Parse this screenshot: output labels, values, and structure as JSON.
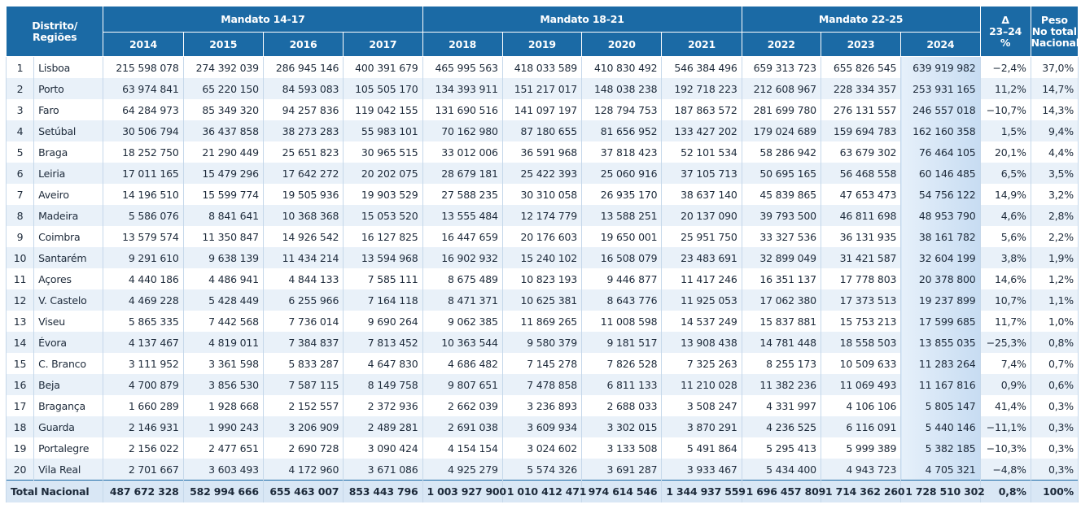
{
  "table": {
    "header": {
      "region_label": "Distrito/ Regiões",
      "groups": [
        {
          "label": "Mandato 14-17",
          "years": [
            "2014",
            "2015",
            "2016",
            "2017"
          ]
        },
        {
          "label": "Mandato 18-21",
          "years": [
            "2018",
            "2019",
            "2020",
            "2021"
          ]
        },
        {
          "label": "Mandato 22-25",
          "years": [
            "2022",
            "2023",
            "2024"
          ]
        }
      ],
      "change_label": [
        "Δ",
        "23–24",
        "%"
      ],
      "weight_label": [
        "Peso",
        "No total",
        "Nacional"
      ]
    },
    "rows": [
      {
        "rank": "1",
        "name": "Lisboa",
        "values": [
          "215 598 078",
          "274 392 039",
          "286 945 146",
          "400 391 679",
          "465 995 563",
          "418 033 589",
          "410 830 492",
          "546 384 496",
          "659 313 723",
          "655 826 545",
          "639 919 982"
        ],
        "change": "−2,4%",
        "weight": "37,0%"
      },
      {
        "rank": "2",
        "name": "Porto",
        "values": [
          "63 974 841",
          "65 220 150",
          "84 593 083",
          "105 505 170",
          "134 393 911",
          "151 217 017",
          "148 038 238",
          "192 718 223",
          "212 608 967",
          "228 334 357",
          "253 931 165"
        ],
        "change": "11,2%",
        "weight": "14,7%"
      },
      {
        "rank": "3",
        "name": "Faro",
        "values": [
          "64 284 973",
          "85 349 320",
          "94 257 836",
          "119 042 155",
          "131 690 516",
          "141 097 197",
          "128 794 753",
          "187 863 572",
          "281 699 780",
          "276 131 557",
          "246 557 018"
        ],
        "change": "−10,7%",
        "weight": "14,3%"
      },
      {
        "rank": "4",
        "name": "Setúbal",
        "values": [
          "30 506 794",
          "36 437 858",
          "38 273 283",
          "55 983 101",
          "70 162 980",
          "87 180 655",
          "81 656 952",
          "133 427 202",
          "179 024 689",
          "159 694 783",
          "162 160 358"
        ],
        "change": "1,5%",
        "weight": "9,4%"
      },
      {
        "rank": "5",
        "name": "Braga",
        "values": [
          "18 252 750",
          "21 290 449",
          "25 651 823",
          "30 965 515",
          "33 012 006",
          "36 591 968",
          "37 818 423",
          "52 101 534",
          "58 286 942",
          "63 679 302",
          "76 464 105"
        ],
        "change": "20,1%",
        "weight": "4,4%"
      },
      {
        "rank": "6",
        "name": "Leiria",
        "values": [
          "17 011 165",
          "15 479 296",
          "17 642 272",
          "20 202 075",
          "28 679 181",
          "25 422 393",
          "25 060 916",
          "37 105 713",
          "50 695 165",
          "56 468 558",
          "60 146 485"
        ],
        "change": "6,5%",
        "weight": "3,5%"
      },
      {
        "rank": "7",
        "name": "Aveiro",
        "values": [
          "14 196 510",
          "15 599 774",
          "19 505 936",
          "19 903 529",
          "27 588 235",
          "30 310 058",
          "26 935 170",
          "38 637 140",
          "45 839 865",
          "47 653 473",
          "54 756 122"
        ],
        "change": "14,9%",
        "weight": "3,2%"
      },
      {
        "rank": "8",
        "name": "Madeira",
        "values": [
          "5 586 076",
          "8 841 641",
          "10 368 368",
          "15 053 520",
          "13 555 484",
          "12 174 779",
          "13 588 251",
          "20 137 090",
          "39 793 500",
          "46 811 698",
          "48 953 790"
        ],
        "change": "4,6%",
        "weight": "2,8%"
      },
      {
        "rank": "9",
        "name": "Coimbra",
        "values": [
          "13 579 574",
          "11 350 847",
          "14 926 542",
          "16 127 825",
          "16 447 659",
          "20 176 603",
          "19 650 001",
          "25 951 750",
          "33 327 536",
          "36 131 935",
          "38 161 782"
        ],
        "change": "5,6%",
        "weight": "2,2%"
      },
      {
        "rank": "10",
        "name": "Santarém",
        "values": [
          "9 291 610",
          "9 638 139",
          "11 434 214",
          "13 594 968",
          "16 902 932",
          "15 240 102",
          "16 508 079",
          "23 483 691",
          "32 899 049",
          "31 421 587",
          "32 604 199"
        ],
        "change": "3,8%",
        "weight": "1,9%"
      },
      {
        "rank": "11",
        "name": "Açores",
        "values": [
          "4 440 186",
          "4 486 941",
          "4 844 133",
          "7 585 111",
          "8 675 489",
          "10 823 193",
          "9 446 877",
          "11 417 246",
          "16 351 137",
          "17 778 803",
          "20 378 800"
        ],
        "change": "14,6%",
        "weight": "1,2%"
      },
      {
        "rank": "12",
        "name": "V. Castelo",
        "values": [
          "4 469 228",
          "5 428 449",
          "6 255 966",
          "7 164 118",
          "8 471 371",
          "10 625 381",
          "8 643 776",
          "11 925 053",
          "17 062 380",
          "17 373 513",
          "19 237 899"
        ],
        "change": "10,7%",
        "weight": "1,1%"
      },
      {
        "rank": "13",
        "name": "Viseu",
        "values": [
          "5 865 335",
          "7 442 568",
          "7 736 014",
          "9 690 264",
          "9 062 385",
          "11 869 265",
          "11 008 598",
          "14 537 249",
          "15 837 881",
          "15 753 213",
          "17 599 685"
        ],
        "change": "11,7%",
        "weight": "1,0%"
      },
      {
        "rank": "14",
        "name": "Évora",
        "values": [
          "4 137 467",
          "4 819 011",
          "7 384 837",
          "7 813 452",
          "10 363 544",
          "9 580 379",
          "9 181 517",
          "13 908 438",
          "14 781 448",
          "18 558 503",
          "13 855 035"
        ],
        "change": "−25,3%",
        "weight": "0,8%"
      },
      {
        "rank": "15",
        "name": "C. Branco",
        "values": [
          "3 111 952",
          "3 361 598",
          "5 833 287",
          "4 647 830",
          "4 686 482",
          "7 145 278",
          "7 826 528",
          "7 325 263",
          "8 255 173",
          "10 509 633",
          "11 283 264"
        ],
        "change": "7,4%",
        "weight": "0,7%"
      },
      {
        "rank": "16",
        "name": "Beja",
        "values": [
          "4 700 879",
          "3 856 530",
          "7 587 115",
          "8 149 758",
          "9 807 651",
          "7 478 858",
          "6 811 133",
          "11 210 028",
          "11 382 236",
          "11 069 493",
          "11 167 816"
        ],
        "change": "0,9%",
        "weight": "0,6%"
      },
      {
        "rank": "17",
        "name": "Bragança",
        "values": [
          "1 660 289",
          "1 928 668",
          "2 152 557",
          "2 372 936",
          "2 662 039",
          "3 236 893",
          "2 688 033",
          "3 508 247",
          "4 331 997",
          "4 106 106",
          "5 805 147"
        ],
        "change": "41,4%",
        "weight": "0,3%"
      },
      {
        "rank": "18",
        "name": "Guarda",
        "values": [
          "2 146 931",
          "1 990 243",
          "3 206 909",
          "2 489 281",
          "2 691 038",
          "3 609 934",
          "3 302 015",
          "3 870 291",
          "4 236 525",
          "6 116 091",
          "5 440 146"
        ],
        "change": "−11,1%",
        "weight": "0,3%"
      },
      {
        "rank": "19",
        "name": "Portalegre",
        "values": [
          "2 156 022",
          "2 477 651",
          "2 690 728",
          "3 090 424",
          "4 154 154",
          "3 024 602",
          "3 133 508",
          "5 491 864",
          "5 295 413",
          "5 999 389",
          "5 382 185"
        ],
        "change": "−10,3%",
        "weight": "0,3%"
      },
      {
        "rank": "20",
        "name": "Vila Real",
        "values": [
          "2 701 667",
          "3 603 493",
          "4 172 960",
          "3 671 086",
          "4 925 279",
          "5 574 326",
          "3 691 287",
          "3 933 467",
          "5 434 400",
          "4 943 723",
          "4 705 321"
        ],
        "change": "−4,8%",
        "weight": "0,3%"
      }
    ],
    "total": {
      "label": "Total Nacional",
      "values": [
        "487 672 328",
        "582 994 666",
        "655 463 007",
        "853 443 796",
        "1 003 927 900",
        "1 010 412 471",
        "974 614 546",
        "1 344 937 559",
        "1 696 457 809",
        "1 714 362 260",
        "1 728 510 302"
      ],
      "change": "0,8%",
      "weight": "100%"
    }
  }
}
